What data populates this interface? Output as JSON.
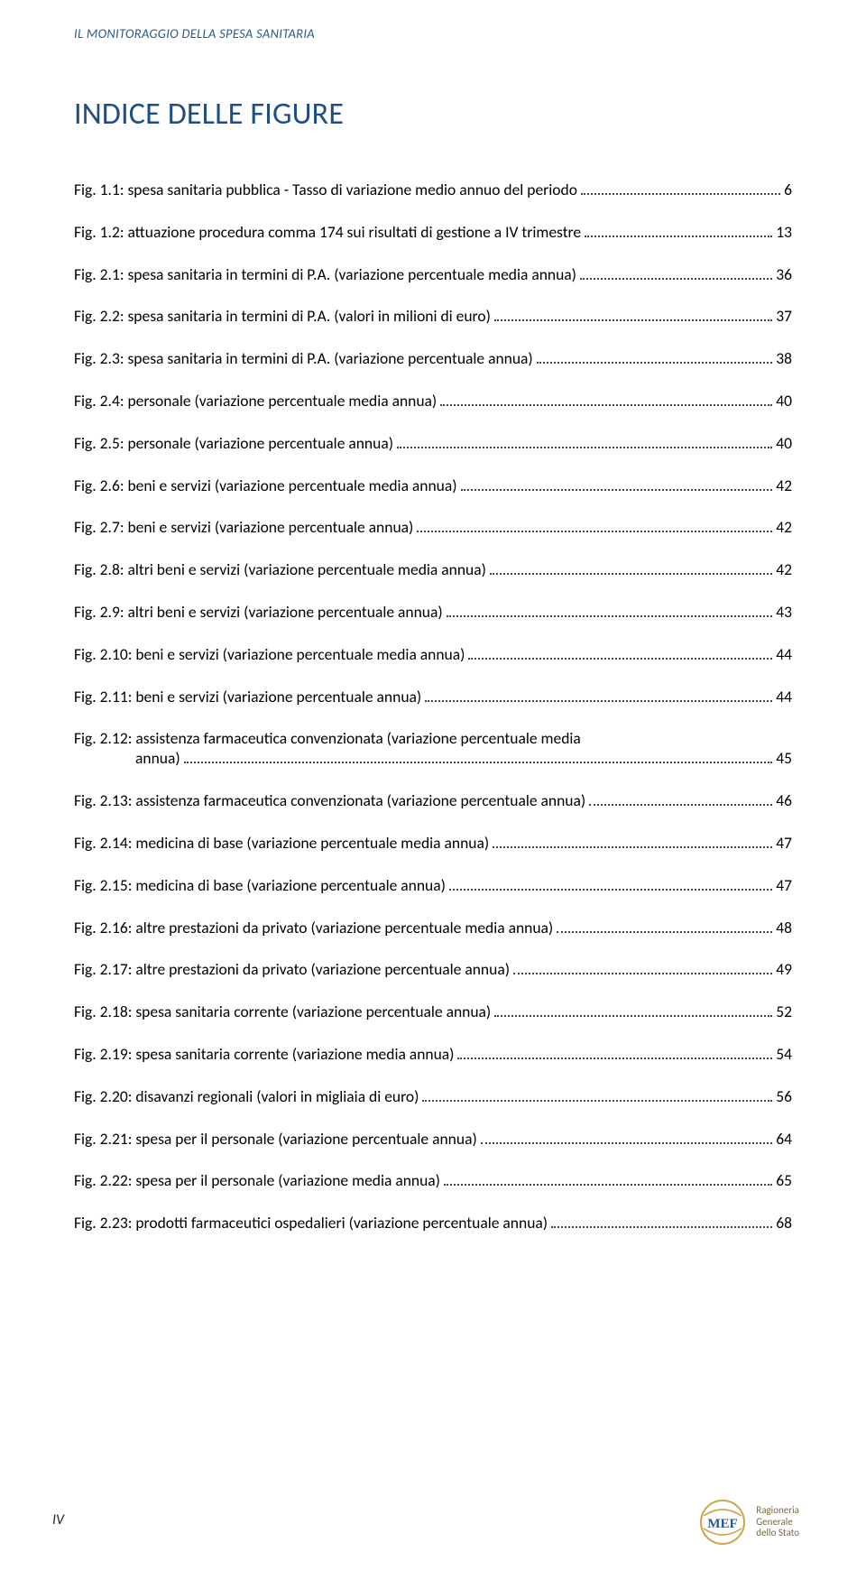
{
  "running_header": "IL MONITORAGGIO DELLA SPESA SANITARIA",
  "title": "INDICE DELLE FIGURE",
  "entries": [
    {
      "label": "Fig. 1.1: spesa sanitaria pubblica - Tasso di variazione medio annuo del periodo",
      "page": "6"
    },
    {
      "label": "Fig. 1.2: attuazione procedura comma 174 sui risultati di gestione a IV trimestre",
      "page": "13"
    },
    {
      "label": "Fig. 2.1: spesa sanitaria in termini di P.A. (variazione percentuale media annua)",
      "page": "36"
    },
    {
      "label": "Fig. 2.2: spesa sanitaria in termini di P.A. (valori in milioni di euro)",
      "page": "37"
    },
    {
      "label": "Fig. 2.3: spesa sanitaria in termini di P.A. (variazione percentuale annua)",
      "page": "38"
    },
    {
      "label": "Fig. 2.4: personale (variazione percentuale media annua)",
      "page": "40"
    },
    {
      "label": "Fig. 2.5: personale (variazione percentuale annua)",
      "page": "40"
    },
    {
      "label": "Fig. 2.6: beni e servizi (variazione percentuale media annua)",
      "page": "42"
    },
    {
      "label": "Fig. 2.7: beni e servizi (variazione percentuale annua)",
      "page": "42"
    },
    {
      "label": "Fig. 2.8: altri beni e servizi (variazione percentuale media annua)",
      "page": "42"
    },
    {
      "label": "Fig. 2.9: altri beni e servizi (variazione percentuale annua)",
      "page": "43"
    },
    {
      "label": "Fig. 2.10: beni e servizi (variazione percentuale media annua)",
      "page": "44"
    },
    {
      "label": "Fig. 2.11: beni e servizi (variazione percentuale annua)",
      "page": "44"
    },
    {
      "label_top": "Fig. 2.12: assistenza farmaceutica convenzionata (variazione percentuale media",
      "label_bottom": "annua)",
      "page": "45",
      "wrap": true
    },
    {
      "label": "Fig. 2.13: assistenza farmaceutica convenzionata (variazione percentuale annua)",
      "page": "46"
    },
    {
      "label": "Fig. 2.14: medicina di base (variazione percentuale media annua)",
      "page": "47"
    },
    {
      "label": "Fig. 2.15: medicina di base (variazione percentuale annua)",
      "page": "47"
    },
    {
      "label": "Fig. 2.16: altre prestazioni da privato (variazione percentuale media annua)",
      "page": "48"
    },
    {
      "label": "Fig. 2.17: altre prestazioni da privato (variazione percentuale annua)",
      "page": "49"
    },
    {
      "label": "Fig. 2.18: spesa sanitaria corrente (variazione percentuale annua)",
      "page": "52"
    },
    {
      "label": "Fig. 2.19: spesa sanitaria corrente (variazione media annua)",
      "page": "54"
    },
    {
      "label": "Fig. 2.20: disavanzi regionali (valori in migliaia di euro)",
      "page": "56"
    },
    {
      "label": "Fig. 2.21: spesa per il personale (variazione percentuale annua)",
      "page": "64"
    },
    {
      "label": "Fig. 2.22: spesa per il personale (variazione media annua)",
      "page": "65"
    },
    {
      "label": "Fig. 2.23: prodotti farmaceutici ospedalieri (variazione percentuale annua)",
      "page": "68"
    }
  ],
  "footer_page_number": "IV",
  "logo": {
    "acronym": "MEF",
    "text_line1": "Ragioneria",
    "text_line2": "Generale",
    "text_line3": "dello Stato",
    "circle_color": "#caa54a",
    "text_color": "#8a733a",
    "acronym_color": "#2a5a8a"
  },
  "colors": {
    "header_blue": "#2a5a8a",
    "title_blue": "#1f4f80",
    "body_text": "#000000",
    "background": "#ffffff"
  },
  "typography": {
    "running_header_fontsize": 14.5,
    "title_fontsize": 34,
    "entry_fontsize": 17.5,
    "footer_fontsize": 16
  }
}
